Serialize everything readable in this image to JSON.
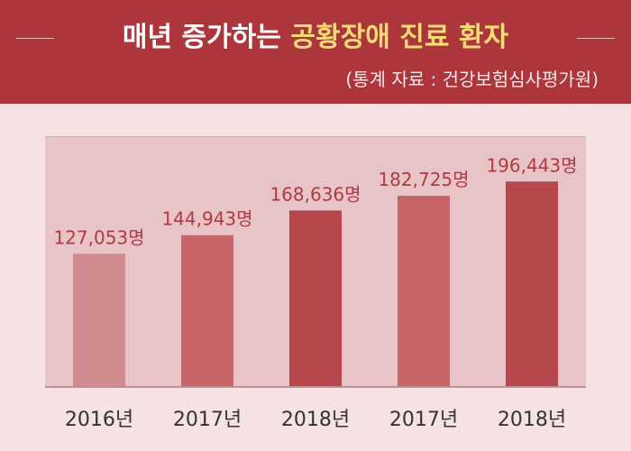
{
  "header": {
    "title_prefix": "매년 증가하는 ",
    "title_highlight": "공황장애 진료 환자",
    "source": "(통계 자료 : 건강보험심사평가원)"
  },
  "colors": {
    "header_bg": "#ac363c",
    "highlight": "#f7dc76",
    "bar_colors": [
      "#d18b8f",
      "#c56569",
      "#b6474c",
      "#c56569",
      "#b6474c"
    ],
    "value_label": "#b23a40"
  },
  "chart_data": {
    "type": "bar",
    "categories": [
      "2016년",
      "2017년",
      "2018년",
      "2017년",
      "2018년"
    ],
    "values": [
      127053,
      144943,
      168636,
      182725,
      196443
    ],
    "value_labels": [
      "127,053명",
      "144,943명",
      "168,636명",
      "182,725명",
      "196,443명"
    ],
    "ylim": [
      0,
      240000
    ],
    "grid": false,
    "legend": "none"
  }
}
